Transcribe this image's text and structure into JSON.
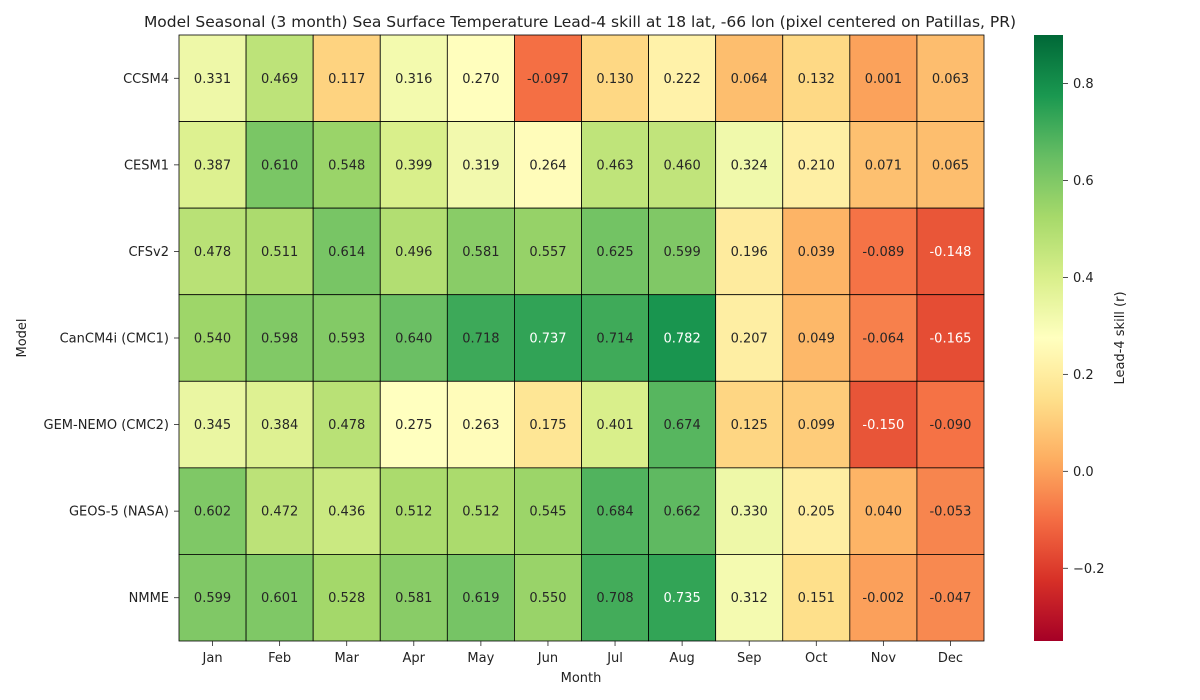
{
  "chart_data": {
    "type": "heatmap",
    "title": "Model Seasonal (3 month) Sea Surface Temperature Lead-4 skill at 18 lat, -66 lon (pixel centered on Patillas, PR)",
    "xlabel": "Month",
    "ylabel": "Model",
    "x_categories": [
      "Jan",
      "Feb",
      "Mar",
      "Apr",
      "May",
      "Jun",
      "Jul",
      "Aug",
      "Sep",
      "Oct",
      "Nov",
      "Dec"
    ],
    "y_categories": [
      "CCSM4",
      "CESM1",
      "CFSv2",
      "CanCM4i (CMC1)",
      "GEM-NEMO (CMC2)",
      "GEOS-5 (NASA)",
      "NMME"
    ],
    "values": [
      [
        0.331,
        0.469,
        0.117,
        0.316,
        0.27,
        -0.097,
        0.13,
        0.222,
        0.064,
        0.132,
        0.001,
        0.063
      ],
      [
        0.387,
        0.61,
        0.548,
        0.399,
        0.319,
        0.264,
        0.463,
        0.46,
        0.324,
        0.21,
        0.071,
        0.065
      ],
      [
        0.478,
        0.511,
        0.614,
        0.496,
        0.581,
        0.557,
        0.625,
        0.599,
        0.196,
        0.039,
        -0.089,
        -0.148
      ],
      [
        0.54,
        0.598,
        0.593,
        0.64,
        0.718,
        0.737,
        0.714,
        0.782,
        0.207,
        0.049,
        -0.064,
        -0.165
      ],
      [
        0.345,
        0.384,
        0.478,
        0.275,
        0.263,
        0.175,
        0.401,
        0.674,
        0.125,
        0.099,
        -0.15,
        -0.09
      ],
      [
        0.602,
        0.472,
        0.436,
        0.512,
        0.512,
        0.545,
        0.684,
        0.662,
        0.33,
        0.205,
        0.04,
        -0.053
      ],
      [
        0.599,
        0.601,
        0.528,
        0.581,
        0.619,
        0.55,
        0.708,
        0.735,
        0.312,
        0.151,
        -0.002,
        -0.047
      ]
    ],
    "value_labels": [
      [
        "0.331",
        "0.469",
        "0.117",
        "0.316",
        "0.270",
        "-0.097",
        "0.130",
        "0.222",
        "0.064",
        "0.132",
        "0.001",
        "0.063"
      ],
      [
        "0.387",
        "0.610",
        "0.548",
        "0.399",
        "0.319",
        "0.264",
        "0.463",
        "0.460",
        "0.324",
        "0.210",
        "0.071",
        "0.065"
      ],
      [
        "0.478",
        "0.511",
        "0.614",
        "0.496",
        "0.581",
        "0.557",
        "0.625",
        "0.599",
        "0.196",
        "0.039",
        "-0.089",
        "-0.148"
      ],
      [
        "0.540",
        "0.598",
        "0.593",
        "0.640",
        "0.718",
        "0.737",
        "0.714",
        "0.782",
        "0.207",
        "0.049",
        "-0.064",
        "-0.165"
      ],
      [
        "0.345",
        "0.384",
        "0.478",
        "0.275",
        "0.263",
        "0.175",
        "0.401",
        "0.674",
        "0.125",
        "0.099",
        "-0.150",
        "-0.090"
      ],
      [
        "0.602",
        "0.472",
        "0.436",
        "0.512",
        "0.512",
        "0.545",
        "0.684",
        "0.662",
        "0.330",
        "0.205",
        "0.040",
        "-0.053"
      ],
      [
        "0.599",
        "0.601",
        "0.528",
        "0.581",
        "0.619",
        "0.550",
        "0.708",
        "0.735",
        "0.312",
        "0.151",
        "-0.002",
        "-0.047"
      ]
    ],
    "colormap": "RdYlGn",
    "colorbar": {
      "label": "Lead-4 skill (r)",
      "range": [
        -0.35,
        0.9
      ],
      "ticks": [
        -0.2,
        0.0,
        0.2,
        0.4,
        0.6,
        0.8
      ],
      "tick_labels": [
        "−0.2",
        "0.0",
        "0.2",
        "0.4",
        "0.6",
        "0.8"
      ]
    },
    "grid": true,
    "legend": "colorbar-right"
  }
}
